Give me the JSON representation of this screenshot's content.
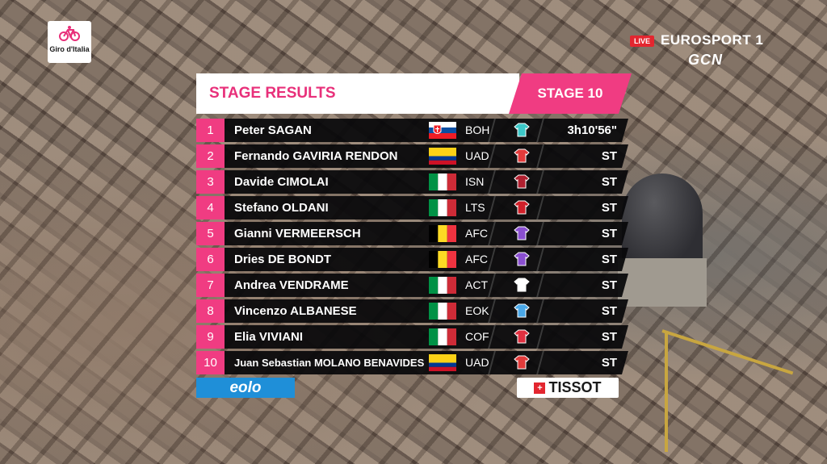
{
  "broadcast": {
    "live_label": "LIVE",
    "channel": "EUROSPORT 1",
    "partner": "GCN"
  },
  "event": {
    "logo_text": "Giro d'Italia"
  },
  "header": {
    "title": "STAGE RESULTS",
    "stage": "STAGE 10",
    "accent_color": "#f03c82"
  },
  "results": [
    {
      "rank": "1",
      "rider": "Peter SAGAN",
      "country": "SVK",
      "team": "BOH",
      "jersey_color": "#3cc8c8",
      "time": "3h10'56\""
    },
    {
      "rank": "2",
      "rider": "Fernando GAVIRIA RENDON",
      "country": "COL",
      "team": "UAD",
      "jersey_color": "#e23b3b",
      "time": "ST"
    },
    {
      "rank": "3",
      "rider": "Davide CIMOLAI",
      "country": "ITA",
      "team": "ISN",
      "jersey_color": "#b02030",
      "time": "ST"
    },
    {
      "rank": "4",
      "rider": "Stefano OLDANI",
      "country": "ITA",
      "team": "LTS",
      "jersey_color": "#d0202a",
      "time": "ST"
    },
    {
      "rank": "5",
      "rider": "Gianni VERMEERSCH",
      "country": "BEL",
      "team": "AFC",
      "jersey_color": "#8a4fd0",
      "time": "ST"
    },
    {
      "rank": "6",
      "rider": "Dries DE BONDT",
      "country": "BEL",
      "team": "AFC",
      "jersey_color": "#8a4fd0",
      "time": "ST"
    },
    {
      "rank": "7",
      "rider": "Andrea VENDRAME",
      "country": "ITA",
      "team": "ACT",
      "jersey_color": "#ffffff",
      "time": "ST"
    },
    {
      "rank": "8",
      "rider": "Vincenzo ALBANESE",
      "country": "ITA",
      "team": "EOK",
      "jersey_color": "#4aa8e8",
      "time": "ST"
    },
    {
      "rank": "9",
      "rider": "Elia VIVIANI",
      "country": "ITA",
      "team": "COF",
      "jersey_color": "#e03040",
      "time": "ST"
    },
    {
      "rank": "10",
      "rider": "Juan Sebastian MOLANO BENAVIDES",
      "country": "COL",
      "team": "UAD",
      "jersey_color": "#e23b3b",
      "time": "ST"
    }
  ],
  "sponsors": {
    "left": "eolo",
    "right": "TISSOT"
  }
}
